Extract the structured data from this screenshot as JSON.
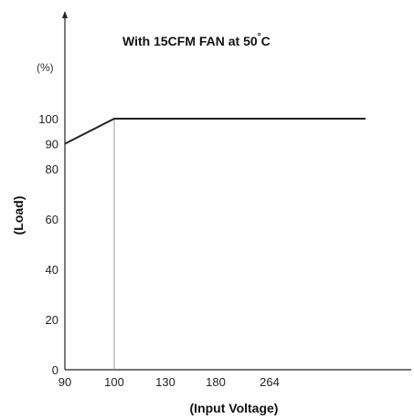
{
  "chart_data": {
    "type": "line",
    "title": "With 15CFM FAN at 50°C",
    "title_main": "With 15CFM FAN at 50",
    "title_degree": "°",
    "title_unit": "C",
    "xlabel": "(Input Voltage)",
    "ylabel": "(Load)",
    "y_unit": "(%)",
    "x_ticks": [
      "90",
      "100",
      "130",
      "180",
      "264"
    ],
    "y_ticks": [
      "0",
      "20",
      "40",
      "60",
      "80",
      "90",
      "100"
    ],
    "series": [
      {
        "x": [
          90,
          100,
          264
        ],
        "y": [
          90,
          100,
          100
        ]
      }
    ],
    "ylim": [
      0,
      100
    ],
    "grid": false,
    "reference_lines": [
      {
        "x": 100
      }
    ]
  }
}
